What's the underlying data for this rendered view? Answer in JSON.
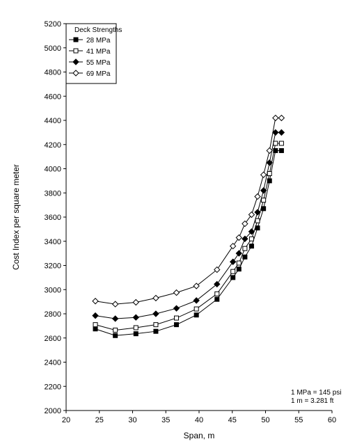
{
  "chart_data": {
    "type": "line",
    "title": "",
    "xlabel": "Span, m",
    "ylabel": "Cost Index per square meter",
    "xlim": [
      20,
      60
    ],
    "ylim": [
      2000,
      5200
    ],
    "x_ticks": [
      20,
      25,
      30,
      35,
      40,
      45,
      50,
      55,
      60
    ],
    "y_ticks": [
      2000,
      2200,
      2400,
      2600,
      2800,
      3000,
      3200,
      3400,
      3600,
      3800,
      4000,
      4200,
      4400,
      4600,
      4800,
      5000,
      5200
    ],
    "grid": false,
    "legend": {
      "title": "Deck Strengths",
      "placement": "top-left"
    },
    "notes": [
      "1 MPa = 145 psi",
      "1 m = 3.281 ft"
    ],
    "series": [
      {
        "name": "28 MPa",
        "marker": "filled-square",
        "color": "#000000",
        "x": [
          24.4,
          27.4,
          30.5,
          33.5,
          36.6,
          39.6,
          42.7,
          45.1,
          46.0,
          46.9,
          47.9,
          48.8,
          49.7,
          50.6,
          51.5,
          52.4
        ],
        "y": [
          2675,
          2620,
          2635,
          2655,
          2710,
          2790,
          2920,
          3100,
          3170,
          3270,
          3360,
          3510,
          3670,
          3900,
          4150,
          4150
        ]
      },
      {
        "name": "41 MPa",
        "marker": "open-square",
        "color": "#000000",
        "x": [
          24.4,
          27.4,
          30.5,
          33.5,
          36.6,
          39.6,
          42.7,
          45.1,
          46.0,
          46.9,
          47.9,
          48.8,
          49.7,
          50.6,
          51.5,
          52.4
        ],
        "y": [
          2710,
          2665,
          2685,
          2710,
          2765,
          2840,
          2965,
          3150,
          3220,
          3340,
          3420,
          3570,
          3740,
          3960,
          4210,
          4210
        ]
      },
      {
        "name": "55 MPa",
        "marker": "filled-diamond",
        "color": "#000000",
        "x": [
          24.4,
          27.4,
          30.5,
          33.5,
          36.6,
          39.6,
          42.7,
          45.1,
          46.0,
          46.9,
          47.9,
          48.8,
          49.7,
          50.6,
          51.5,
          52.4
        ],
        "y": [
          2785,
          2760,
          2770,
          2800,
          2845,
          2910,
          3045,
          3230,
          3300,
          3420,
          3480,
          3640,
          3820,
          4050,
          4300,
          4300
        ]
      },
      {
        "name": "69 MPa",
        "marker": "open-diamond",
        "color": "#000000",
        "x": [
          24.4,
          27.4,
          30.5,
          33.5,
          36.6,
          39.6,
          42.7,
          45.1,
          46.0,
          46.9,
          47.9,
          48.8,
          49.7,
          50.6,
          51.5,
          52.4
        ],
        "y": [
          2905,
          2880,
          2895,
          2930,
          2975,
          3030,
          3165,
          3360,
          3430,
          3545,
          3620,
          3770,
          3950,
          4150,
          4420,
          4420
        ]
      }
    ]
  }
}
